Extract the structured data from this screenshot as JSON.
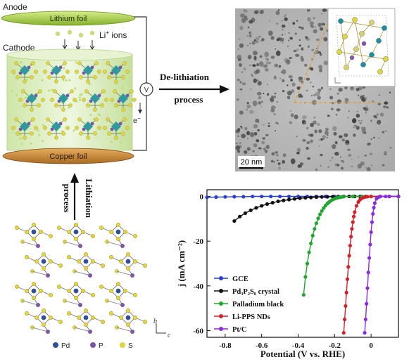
{
  "battery": {
    "anode_label": "Anode",
    "anode_foil": "Lithium foil",
    "ions_label": "Li",
    "ions_sup": "+",
    "ions_suffix": " ions",
    "cathode_label": "Cathode",
    "meter_symbol": "V",
    "electron_label": "e",
    "electron_sup": "−",
    "cathode_foil": "Copper foil"
  },
  "arrows": {
    "delithiation_line1": "De-lithiation",
    "delithiation_line2": "process",
    "lithiation_line1": "Lithiation",
    "lithiation_line2": "process"
  },
  "tem": {
    "scale_bar": "20 nm"
  },
  "crystal": {
    "legend": [
      {
        "label": "Pd",
        "color": "#2f4f9a"
      },
      {
        "label": "P",
        "color": "#7a55a8"
      },
      {
        "label": "S",
        "color": "#e0d640"
      }
    ],
    "axis_b": "b",
    "axis_c": "c"
  },
  "colors": {
    "anode_green": "#a9cc4a",
    "copper": "#c98a3c",
    "electrolyte": "#dceec0",
    "tem_gray": "#b8b8b8"
  },
  "chart_data": {
    "type": "line",
    "xlabel": "Potential (V vs. RHE)",
    "ylabel": "j (mA cm⁻²)",
    "xlim": [
      -0.9,
      0.15
    ],
    "ylim": [
      -63,
      3
    ],
    "xticks": [
      -0.8,
      -0.6,
      -0.4,
      -0.2,
      0.0
    ],
    "xtick_labels": [
      "-0.8",
      "-0.6",
      "-0.4",
      "-0.2",
      "0"
    ],
    "yticks": [
      0,
      -20,
      -40,
      -60
    ],
    "ytick_labels": [
      "0",
      "-20",
      "-40",
      "-60"
    ],
    "legend_placement": "bottom-left",
    "series": [
      {
        "name": "GCE",
        "color": "#2b3fcf",
        "x": [
          -0.9,
          -0.85,
          -0.8,
          -0.75,
          -0.7,
          -0.65,
          -0.6,
          -0.55,
          -0.5,
          -0.45,
          -0.4,
          -0.35,
          -0.3,
          -0.25,
          -0.2,
          -0.15,
          -0.1,
          -0.05,
          0.0,
          0.05,
          0.1,
          0.15
        ],
        "y": [
          -0.4,
          -0.3,
          -0.2,
          -0.1,
          -0.1,
          0,
          0,
          0,
          0,
          0,
          0,
          0,
          0,
          0,
          0,
          0,
          0,
          0,
          0,
          0,
          0,
          0
        ]
      },
      {
        "name": "Pd₃P₂S₈ crystal",
        "color": "#111111",
        "x": [
          -0.75,
          -0.72,
          -0.69,
          -0.66,
          -0.63,
          -0.6,
          -0.57,
          -0.54,
          -0.51,
          -0.48,
          -0.45,
          -0.42,
          -0.39,
          -0.36,
          -0.33,
          -0.3,
          -0.27,
          -0.24,
          -0.21,
          -0.18,
          -0.15,
          -0.12,
          -0.09,
          -0.06,
          -0.03,
          0.0,
          0.05,
          0.1,
          0.15
        ],
        "y": [
          -11,
          -9,
          -7.5,
          -6.2,
          -5.1,
          -4.2,
          -3.4,
          -2.8,
          -2.2,
          -1.8,
          -1.4,
          -1.1,
          -0.8,
          -0.6,
          -0.45,
          -0.3,
          -0.2,
          -0.15,
          -0.1,
          -0.05,
          0,
          0,
          0,
          0,
          0,
          0,
          0,
          0,
          0
        ]
      },
      {
        "name": "Palladium black",
        "color": "#22a52e",
        "x": [
          -0.37,
          -0.36,
          -0.35,
          -0.34,
          -0.33,
          -0.32,
          -0.31,
          -0.3,
          -0.29,
          -0.28,
          -0.27,
          -0.26,
          -0.25,
          -0.24,
          -0.23,
          -0.22,
          -0.21,
          -0.2,
          -0.19,
          -0.18,
          -0.17,
          -0.16,
          -0.15,
          -0.1,
          -0.05,
          0.0,
          0.05,
          0.1,
          0.15
        ],
        "y": [
          -44,
          -36,
          -30,
          -25,
          -21,
          -17.5,
          -14.5,
          -12,
          -9.8,
          -8,
          -6.5,
          -5.2,
          -4.1,
          -3.2,
          -2.5,
          -1.9,
          -1.4,
          -1.0,
          -0.7,
          -0.5,
          -0.35,
          -0.2,
          -0.1,
          0,
          0,
          0,
          0,
          0,
          0
        ]
      },
      {
        "name": "Li-PPS NDs",
        "color": "#d4202a",
        "x": [
          -0.15,
          -0.145,
          -0.14,
          -0.135,
          -0.13,
          -0.125,
          -0.12,
          -0.115,
          -0.11,
          -0.105,
          -0.1,
          -0.095,
          -0.09,
          -0.08,
          -0.07,
          -0.06,
          -0.05,
          -0.04,
          -0.03,
          -0.02,
          0.0,
          0.05,
          0.1,
          0.15
        ],
        "y": [
          -61,
          -55,
          -49,
          -43,
          -37,
          -31.5,
          -26.5,
          -22,
          -18,
          -14.5,
          -11.5,
          -9,
          -7,
          -4.2,
          -2.5,
          -1.4,
          -0.8,
          -0.4,
          -0.2,
          -0.1,
          0,
          0,
          0,
          0
        ]
      },
      {
        "name": "Pt/C",
        "color": "#8a2be2",
        "x": [
          -0.035,
          -0.03,
          -0.025,
          -0.02,
          -0.015,
          -0.01,
          -0.005,
          0.0,
          0.005,
          0.01,
          0.015,
          0.02,
          0.03,
          0.04,
          0.05,
          0.08,
          0.1,
          0.15
        ],
        "y": [
          -61,
          -55,
          -48,
          -41,
          -34,
          -27.5,
          -21.5,
          -16,
          -11.5,
          -7.8,
          -5,
          -3,
          -1,
          -0.3,
          0,
          0,
          0,
          0
        ]
      }
    ]
  }
}
